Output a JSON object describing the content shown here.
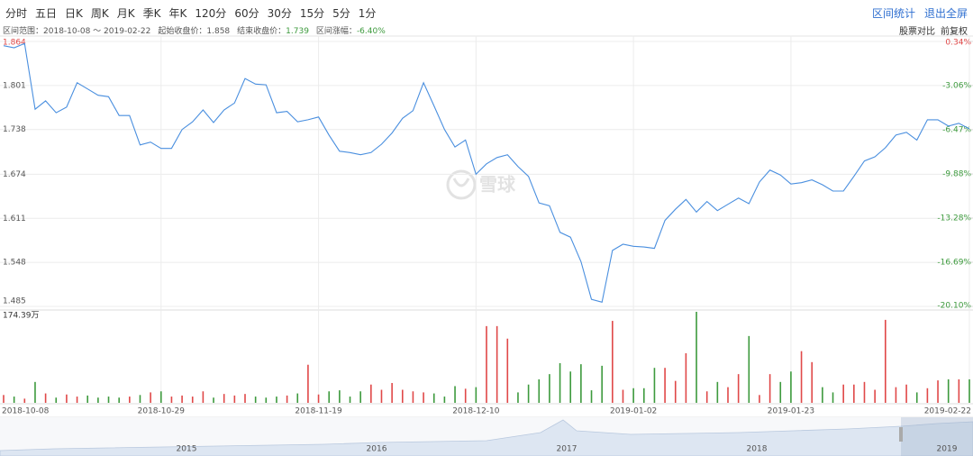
{
  "toolbar": {
    "tabs": [
      "分时",
      "五日",
      "日K",
      "周K",
      "月K",
      "季K",
      "年K",
      "120分",
      "60分",
      "30分",
      "15分",
      "5分",
      "1分"
    ],
    "actions": [
      "区间统计",
      "退出全屏"
    ]
  },
  "summary": [
    {
      "label": "区间范围：",
      "value": "2018-10-08 ～ 2019-02-22",
      "color": "#555555"
    },
    {
      "label": "起始收盘价：",
      "value": "1.858",
      "color": "#555555"
    },
    {
      "label": "结束收盘价：",
      "value": "1.739",
      "color": "#3d9a3d"
    },
    {
      "label": "区间涨幅：",
      "value": "-6.40%",
      "color": "#3d9a3d"
    }
  ],
  "chart_options": [
    "股票对比",
    "前复权"
  ],
  "chart_data": {
    "type": "line",
    "color": "#4a8fdf",
    "up_color": "#e04848",
    "down_color": "#3d9a3d",
    "grid": true,
    "watermark": "雪球",
    "categories": [
      "2018-10-08",
      null,
      null,
      null,
      null,
      null,
      null,
      null,
      null,
      null,
      null,
      null,
      null,
      null,
      null,
      "2018-10-29",
      null,
      null,
      null,
      null,
      null,
      null,
      null,
      null,
      null,
      null,
      null,
      null,
      null,
      null,
      "2018-11-19",
      null,
      null,
      null,
      null,
      null,
      null,
      null,
      null,
      null,
      null,
      null,
      null,
      null,
      null,
      "2018-12-10",
      null,
      null,
      null,
      null,
      null,
      null,
      null,
      null,
      null,
      null,
      null,
      null,
      null,
      null,
      "2019-01-02",
      null,
      null,
      null,
      null,
      null,
      null,
      null,
      null,
      null,
      null,
      null,
      null,
      null,
      null,
      "2019-01-23",
      null,
      null,
      null,
      null,
      null,
      null,
      null,
      null,
      null,
      null,
      null,
      null,
      null,
      null,
      null,
      null,
      "2019-02-22"
    ],
    "values": [
      1.858,
      1.855,
      1.861,
      1.767,
      1.779,
      1.762,
      1.77,
      1.805,
      1.796,
      1.787,
      1.785,
      1.758,
      1.758,
      1.716,
      1.72,
      1.711,
      1.711,
      1.738,
      1.749,
      1.766,
      1.748,
      1.766,
      1.776,
      1.811,
      1.803,
      1.802,
      1.762,
      1.764,
      1.749,
      1.752,
      1.756,
      1.73,
      1.707,
      1.705,
      1.702,
      1.705,
      1.717,
      1.733,
      1.754,
      1.765,
      1.805,
      1.772,
      1.738,
      1.713,
      1.723,
      1.674,
      1.689,
      1.698,
      1.702,
      1.685,
      1.671,
      1.633,
      1.629,
      1.591,
      1.584,
      1.549,
      1.495,
      1.491,
      1.565,
      1.574,
      1.571,
      1.57,
      1.568,
      1.608,
      1.624,
      1.638,
      1.62,
      1.635,
      1.622,
      1.631,
      1.64,
      1.632,
      1.663,
      1.68,
      1.673,
      1.66,
      1.662,
      1.666,
      1.659,
      1.65,
      1.65,
      1.671,
      1.693,
      1.699,
      1.712,
      1.73,
      1.734,
      1.723,
      1.752,
      1.752,
      1.743,
      1.747,
      1.739
    ],
    "ylim": [
      1.485,
      1.864
    ],
    "yticks": [
      1.864,
      1.801,
      1.738,
      1.674,
      1.611,
      1.548,
      1.485
    ],
    "y2lim": [
      -20.1,
      0.34
    ],
    "y2ticks": [
      {
        "value": 0.34,
        "label": "0.34%"
      },
      {
        "value": -3.06,
        "label": "-3.06%"
      },
      {
        "value": -6.47,
        "label": "-6.47%"
      },
      {
        "value": -9.88,
        "label": "-9.88%"
      },
      {
        "value": -13.28,
        "label": "-13.28%"
      },
      {
        "value": -16.69,
        "label": "-16.69%"
      },
      {
        "value": -20.1,
        "label": "-20.10%"
      }
    ],
    "volume": {
      "values": [
        15,
        12,
        8,
        40,
        18,
        10,
        16,
        12,
        14,
        10,
        12,
        10,
        12,
        15,
        20,
        22,
        12,
        14,
        12,
        22,
        10,
        17,
        14,
        17,
        12,
        10,
        12,
        14,
        18,
        73,
        16,
        22,
        24,
        12,
        22,
        35,
        25,
        38,
        25,
        22,
        20,
        18,
        12,
        32,
        27,
        30,
        147,
        147,
        123,
        20,
        35,
        45,
        55,
        76,
        60,
        74,
        24,
        71,
        157,
        25,
        28,
        28,
        67,
        67,
        42,
        95,
        174.39,
        22,
        40,
        30,
        55,
        128,
        15,
        55,
        40,
        60,
        99,
        78,
        30,
        20,
        35,
        35,
        40,
        25,
        159,
        30,
        35,
        20,
        28,
        43,
        45,
        45,
        45
      ],
      "ylim": [
        0,
        174.39
      ],
      "yticks": [
        {
          "value": 174.39,
          "label": "174.39万"
        }
      ]
    },
    "navigator": {
      "labels": [
        "2015",
        "2016",
        "2017",
        "2018",
        "2019"
      ]
    }
  }
}
